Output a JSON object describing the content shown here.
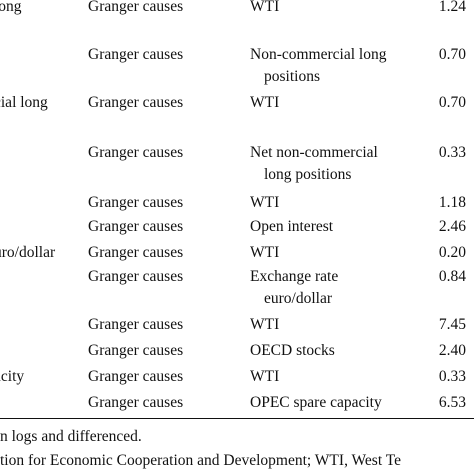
{
  "table": {
    "rows": [
      {
        "left": "long",
        "relation": "Granger causes",
        "right": [
          "WTI"
        ],
        "value": "1.24"
      },
      {
        "left": "",
        "relation": "Granger causes",
        "right": [
          "Non-commercial long",
          "positions"
        ],
        "value": "0.70"
      },
      {
        "left": "cial long",
        "relation": "Granger causes",
        "right": [
          "WTI"
        ],
        "value": "0.70"
      },
      {
        "left": "",
        "relation": "Granger causes",
        "right": [
          "Net non-commercial",
          "long positions"
        ],
        "value": "0.33"
      },
      {
        "left": "",
        "relation": "Granger causes",
        "right": [
          "WTI"
        ],
        "value": "1.18"
      },
      {
        "left": "",
        "relation": "Granger causes",
        "right": [
          "Open interest"
        ],
        "value": "2.46"
      },
      {
        "left": "uro/dollar",
        "relation": "Granger causes",
        "right": [
          "WTI"
        ],
        "value": "0.20"
      },
      {
        "left": "",
        "relation": "Granger causes",
        "right": [
          "Exchange rate",
          "euro/dollar"
        ],
        "value": "0.84"
      },
      {
        "left": "",
        "relation": "Granger causes",
        "right": [
          "WTI"
        ],
        "value": "7.45"
      },
      {
        "left": "",
        "relation": "Granger causes",
        "right": [
          "OECD stocks"
        ],
        "value": "2.40"
      },
      {
        "left": "acity",
        "relation": "Granger causes",
        "right": [
          "WTI"
        ],
        "value": "0.33"
      },
      {
        "left": "",
        "relation": "Granger causes",
        "right": [
          "OPEC spare capacity"
        ],
        "value": "6.53"
      }
    ]
  },
  "notes": {
    "line1": "n logs and differenced.",
    "line2": "tion for Economic Cooperation and Development; WTI, West Te"
  }
}
